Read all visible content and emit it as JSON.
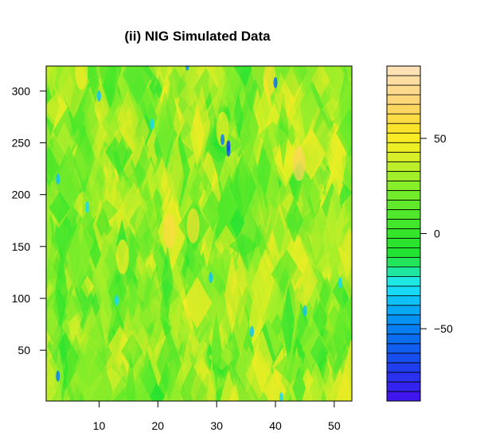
{
  "chart_data": {
    "type": "heatmap",
    "title": "(ii) NIG Simulated Data",
    "xlabel": "",
    "ylabel": "",
    "xlim": [
      1,
      53
    ],
    "ylim": [
      1,
      324
    ],
    "x_ticks": [
      10,
      20,
      30,
      40,
      50
    ],
    "y_ticks": [
      50,
      100,
      150,
      200,
      250,
      300
    ],
    "colorbar": {
      "range": [
        -88,
        88
      ],
      "ticks": [
        50,
        0,
        -50
      ],
      "tick_labels": [
        "50",
        "0",
        "−50"
      ],
      "n_levels": 35,
      "colors_low_to_high": [
        "#3f16ee",
        "#3423ee",
        "#2a31ef",
        "#1f3fef",
        "#174ef0",
        "#105def",
        "#0a6df0",
        "#077ff1",
        "#0592f3",
        "#08a8f4",
        "#0fc2f5",
        "#17daf7",
        "#1de8e3",
        "#20e7a0",
        "#22e55c",
        "#22e332",
        "#29e32c",
        "#35e52a",
        "#42e62a",
        "#50e82a",
        "#5fe92a",
        "#71eb2a",
        "#87ee2a",
        "#a0ef29",
        "#bcef2a",
        "#d6ef28",
        "#ecef24",
        "#f9ec24",
        "#fbe32c",
        "#fcdc45",
        "#fcd65f",
        "#fcd678",
        "#fdda8d",
        "#fedda3",
        "#fee1b5"
      ]
    }
  }
}
